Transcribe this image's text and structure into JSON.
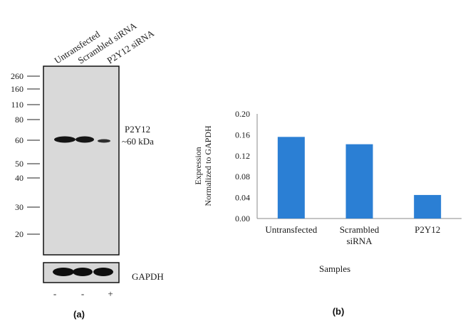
{
  "blot": {
    "lanes": [
      "Untransfected",
      "Scrambled siRNA",
      "P2Y12 siRNA"
    ],
    "markers": [
      "260",
      "160",
      "110",
      "80",
      "60",
      "50",
      "40",
      "30",
      "20"
    ],
    "band_label": "P2Y12",
    "band_size": "~60 kDa",
    "loading_label": "GAPDH",
    "treatment": [
      "-",
      "-",
      "+"
    ],
    "panel_label": "(a)"
  },
  "chart_data": {
    "type": "bar",
    "categories": [
      "Untransfected",
      "Scrambled\nsiRNA",
      "P2Y12"
    ],
    "values": [
      0.156,
      0.142,
      0.045
    ],
    "ylim": [
      0,
      0.2
    ],
    "yticks": [
      "0.00",
      "0.04",
      "0.08",
      "0.12",
      "0.16",
      "0.20"
    ],
    "ylabel_line1": "Expression",
    "ylabel_line2": "Normalized to GAPDH",
    "xlabel": "Samples",
    "bar_color": "#2b7fd4",
    "grid": false,
    "panel_label": "(b)"
  }
}
